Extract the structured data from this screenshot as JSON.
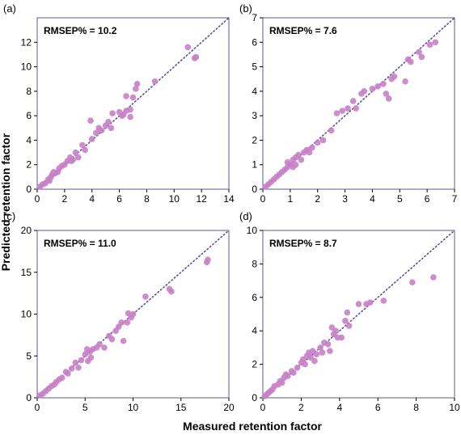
{
  "figure": {
    "xlabel": "Measured retention factor",
    "ylabel": "Predicted retention factor",
    "point_color": "#c87fc5",
    "line_color": "#5a4fa0",
    "frame_color": "#5a5a8c"
  },
  "chart_data": [
    {
      "type": "scatter",
      "panel": "(a)",
      "annotation": "RMSEP% = 10.2",
      "xlim": [
        0,
        14
      ],
      "ylim": [
        0,
        14
      ],
      "xticks": [
        "0",
        "2",
        "4",
        "6",
        "8",
        "10",
        "12",
        "14"
      ],
      "yticks": [
        "0",
        "2",
        "4",
        "6",
        "8",
        "10",
        "12"
      ],
      "identity_line": true,
      "points": [
        [
          0.2,
          0.2
        ],
        [
          0.4,
          0.4
        ],
        [
          0.6,
          0.5
        ],
        [
          0.8,
          0.8
        ],
        [
          1.0,
          1.0
        ],
        [
          1.1,
          1.2
        ],
        [
          1.3,
          1.3
        ],
        [
          1.5,
          1.4
        ],
        [
          1.6,
          1.7
        ],
        [
          1.8,
          1.9
        ],
        [
          2.0,
          2.0
        ],
        [
          2.2,
          2.3
        ],
        [
          2.4,
          2.6
        ],
        [
          2.6,
          2.4
        ],
        [
          2.8,
          3.0
        ],
        [
          3.0,
          2.6
        ],
        [
          2.5,
          2.3
        ],
        [
          1.2,
          1.4
        ],
        [
          0.9,
          0.7
        ],
        [
          3.3,
          3.6
        ],
        [
          3.5,
          3.2
        ],
        [
          3.9,
          5.6
        ],
        [
          4.0,
          4.1
        ],
        [
          4.3,
          4.6
        ],
        [
          4.5,
          5.0
        ],
        [
          4.7,
          4.8
        ],
        [
          5.0,
          5.2
        ],
        [
          5.2,
          5.5
        ],
        [
          5.4,
          5.0
        ],
        [
          5.5,
          6.2
        ],
        [
          6.0,
          6.3
        ],
        [
          6.2,
          6.0
        ],
        [
          6.5,
          6.4
        ],
        [
          6.8,
          6.5
        ],
        [
          7.0,
          7.5
        ],
        [
          7.2,
          8.2
        ],
        [
          7.3,
          8.6
        ],
        [
          6.5,
          7.6
        ],
        [
          6.3,
          6.1
        ],
        [
          6.8,
          5.9
        ],
        [
          8.6,
          8.8
        ],
        [
          11.0,
          11.6
        ],
        [
          11.5,
          10.7
        ],
        [
          11.6,
          10.8
        ]
      ]
    },
    {
      "type": "scatter",
      "panel": "(b)",
      "annotation": "RMSEP% = 7.6",
      "xlim": [
        0,
        7
      ],
      "ylim": [
        0,
        7
      ],
      "xticks": [
        "0",
        "1",
        "2",
        "3",
        "4",
        "5",
        "6",
        "7"
      ],
      "yticks": [
        "0",
        "1",
        "2",
        "3",
        "4",
        "5",
        "6",
        "7"
      ],
      "identity_line": true,
      "points": [
        [
          0.1,
          0.1
        ],
        [
          0.2,
          0.2
        ],
        [
          0.3,
          0.3
        ],
        [
          0.4,
          0.4
        ],
        [
          0.5,
          0.5
        ],
        [
          0.6,
          0.6
        ],
        [
          0.7,
          0.7
        ],
        [
          0.8,
          0.8
        ],
        [
          0.9,
          0.9
        ],
        [
          0.9,
          1.1
        ],
        [
          1.0,
          1.0
        ],
        [
          1.1,
          1.2
        ],
        [
          1.1,
          0.9
        ],
        [
          1.2,
          1.3
        ],
        [
          1.2,
          1.0
        ],
        [
          1.3,
          1.4
        ],
        [
          1.4,
          1.2
        ],
        [
          1.5,
          1.5
        ],
        [
          1.6,
          1.6
        ],
        [
          1.7,
          1.5
        ],
        [
          1.8,
          1.7
        ],
        [
          2.0,
          1.9
        ],
        [
          2.2,
          2.0
        ],
        [
          2.5,
          2.4
        ],
        [
          2.7,
          3.1
        ],
        [
          2.9,
          3.2
        ],
        [
          3.1,
          3.3
        ],
        [
          3.3,
          3.6
        ],
        [
          3.4,
          3.3
        ],
        [
          3.6,
          3.9
        ],
        [
          3.7,
          4.0
        ],
        [
          4.0,
          4.1
        ],
        [
          4.2,
          4.2
        ],
        [
          4.4,
          4.3
        ],
        [
          4.5,
          3.9
        ],
        [
          4.6,
          3.7
        ],
        [
          4.7,
          4.5
        ],
        [
          4.8,
          4.6
        ],
        [
          5.2,
          4.4
        ],
        [
          5.3,
          5.3
        ],
        [
          5.4,
          5.2
        ],
        [
          5.7,
          5.6
        ],
        [
          5.8,
          5.4
        ],
        [
          6.1,
          5.9
        ],
        [
          6.3,
          6.0
        ]
      ]
    },
    {
      "type": "scatter",
      "panel": "(c)",
      "annotation": "RMSEP% = 11.0",
      "xlim": [
        0,
        20
      ],
      "ylim": [
        0,
        20
      ],
      "xticks": [
        "0",
        "5",
        "10",
        "15",
        "20"
      ],
      "yticks": [
        "0",
        "5",
        "10",
        "15",
        "20"
      ],
      "identity_line": true,
      "points": [
        [
          0.3,
          0.3
        ],
        [
          0.6,
          0.5
        ],
        [
          0.9,
          0.8
        ],
        [
          1.2,
          1.1
        ],
        [
          1.5,
          1.4
        ],
        [
          1.8,
          1.6
        ],
        [
          2.0,
          1.9
        ],
        [
          2.3,
          2.2
        ],
        [
          2.6,
          2.4
        ],
        [
          3.0,
          3.1
        ],
        [
          3.2,
          2.9
        ],
        [
          3.6,
          3.5
        ],
        [
          4.0,
          4.2
        ],
        [
          4.3,
          3.6
        ],
        [
          4.6,
          4.5
        ],
        [
          5.0,
          5.2
        ],
        [
          5.2,
          5.8
        ],
        [
          5.3,
          4.4
        ],
        [
          5.5,
          5.5
        ],
        [
          5.6,
          4.8
        ],
        [
          5.8,
          5.8
        ],
        [
          6.2,
          6.0
        ],
        [
          6.5,
          6.4
        ],
        [
          7.0,
          6.0
        ],
        [
          7.5,
          7.4
        ],
        [
          7.8,
          7.0
        ],
        [
          8.2,
          8.0
        ],
        [
          8.5,
          8.5
        ],
        [
          8.8,
          9.0
        ],
        [
          9.0,
          6.8
        ],
        [
          9.4,
          9.0
        ],
        [
          9.5,
          10.1
        ],
        [
          9.8,
          9.6
        ],
        [
          10.0,
          10.0
        ],
        [
          11.3,
          12.1
        ],
        [
          13.8,
          13.0
        ],
        [
          14.0,
          12.7
        ],
        [
          17.7,
          16.2
        ],
        [
          17.8,
          16.5
        ]
      ]
    },
    {
      "type": "scatter",
      "panel": "(d)",
      "annotation": "RMSEP% = 8.7",
      "xlim": [
        0,
        10
      ],
      "ylim": [
        0,
        10
      ],
      "xticks": [
        "0",
        "2",
        "4",
        "6",
        "8",
        "10"
      ],
      "yticks": [
        "0",
        "2",
        "4",
        "6",
        "8",
        "10"
      ],
      "identity_line": true,
      "points": [
        [
          0.1,
          0.1
        ],
        [
          0.2,
          0.2
        ],
        [
          0.3,
          0.3
        ],
        [
          0.4,
          0.4
        ],
        [
          0.5,
          0.5
        ],
        [
          0.6,
          0.7
        ],
        [
          0.8,
          0.8
        ],
        [
          0.9,
          1.0
        ],
        [
          1.0,
          0.9
        ],
        [
          1.1,
          1.2
        ],
        [
          1.2,
          1.4
        ],
        [
          1.3,
          1.3
        ],
        [
          1.5,
          1.6
        ],
        [
          1.6,
          1.5
        ],
        [
          1.8,
          1.8
        ],
        [
          2.0,
          2.1
        ],
        [
          2.1,
          2.3
        ],
        [
          2.2,
          2.0
        ],
        [
          2.3,
          2.5
        ],
        [
          2.4,
          2.7
        ],
        [
          2.5,
          2.4
        ],
        [
          2.6,
          2.8
        ],
        [
          2.7,
          2.2
        ],
        [
          2.8,
          2.6
        ],
        [
          3.0,
          3.0
        ],
        [
          3.1,
          2.7
        ],
        [
          3.2,
          3.3
        ],
        [
          3.4,
          3.2
        ],
        [
          3.5,
          2.8
        ],
        [
          3.6,
          4.2
        ],
        [
          3.7,
          3.8
        ],
        [
          3.8,
          4.0
        ],
        [
          3.9,
          3.6
        ],
        [
          4.1,
          3.6
        ],
        [
          4.3,
          4.6
        ],
        [
          4.4,
          5.1
        ],
        [
          4.5,
          4.3
        ],
        [
          5.0,
          5.6
        ],
        [
          5.4,
          5.6
        ],
        [
          5.6,
          5.7
        ],
        [
          6.3,
          5.8
        ],
        [
          7.8,
          6.9
        ],
        [
          8.9,
          7.2
        ]
      ]
    }
  ]
}
